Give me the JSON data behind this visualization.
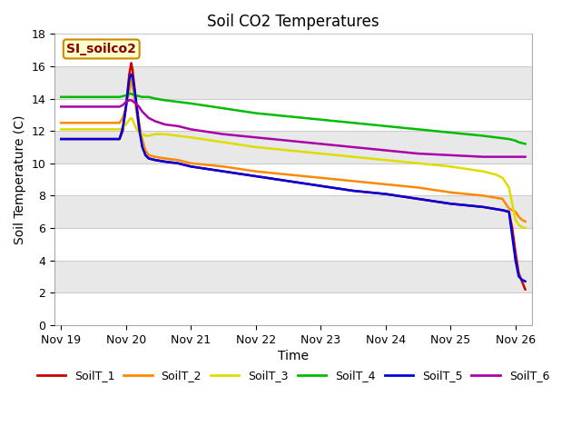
{
  "title": "Soil CO2 Temperatures",
  "xlabel": "Time",
  "ylabel": "Soil Temperature (C)",
  "ylim": [
    0,
    18
  ],
  "annotation_text": "SI_soilco2",
  "background_color": "#ffffff",
  "fig_background": "#ffffff",
  "stripe_colors": [
    "#ffffff",
    "#e8e8e8"
  ],
  "series": {
    "SoilT_1": {
      "color": "#cc0000",
      "points": [
        [
          0.0,
          11.5
        ],
        [
          0.25,
          11.5
        ],
        [
          0.5,
          11.5
        ],
        [
          0.75,
          11.5
        ],
        [
          0.9,
          11.5
        ],
        [
          0.95,
          12.0
        ],
        [
          1.0,
          13.5
        ],
        [
          1.05,
          15.5
        ],
        [
          1.08,
          16.2
        ],
        [
          1.1,
          15.8
        ],
        [
          1.15,
          14.0
        ],
        [
          1.2,
          12.5
        ],
        [
          1.25,
          11.2
        ],
        [
          1.3,
          10.5
        ],
        [
          1.35,
          10.3
        ],
        [
          1.45,
          10.2
        ],
        [
          1.6,
          10.1
        ],
        [
          1.8,
          10.0
        ],
        [
          2.0,
          9.8
        ],
        [
          2.5,
          9.5
        ],
        [
          3.0,
          9.2
        ],
        [
          3.5,
          8.9
        ],
        [
          4.0,
          8.6
        ],
        [
          4.5,
          8.3
        ],
        [
          5.0,
          8.1
        ],
        [
          5.5,
          7.8
        ],
        [
          6.0,
          7.5
        ],
        [
          6.5,
          7.3
        ],
        [
          6.8,
          7.1
        ],
        [
          6.85,
          7.05
        ],
        [
          6.9,
          7.0
        ],
        [
          6.95,
          6.0
        ],
        [
          7.0,
          4.5
        ],
        [
          7.05,
          3.2
        ],
        [
          7.1,
          2.7
        ],
        [
          7.15,
          2.2
        ]
      ]
    },
    "SoilT_2": {
      "color": "#ff8800",
      "points": [
        [
          0.0,
          12.5
        ],
        [
          0.25,
          12.5
        ],
        [
          0.5,
          12.5
        ],
        [
          0.75,
          12.5
        ],
        [
          0.9,
          12.5
        ],
        [
          0.95,
          12.8
        ],
        [
          1.0,
          13.5
        ],
        [
          1.05,
          14.5
        ],
        [
          1.08,
          15.2
        ],
        [
          1.1,
          14.8
        ],
        [
          1.15,
          13.5
        ],
        [
          1.2,
          12.2
        ],
        [
          1.25,
          11.5
        ],
        [
          1.3,
          10.8
        ],
        [
          1.35,
          10.5
        ],
        [
          1.45,
          10.4
        ],
        [
          1.6,
          10.3
        ],
        [
          1.8,
          10.2
        ],
        [
          2.0,
          10.0
        ],
        [
          2.5,
          9.8
        ],
        [
          3.0,
          9.5
        ],
        [
          3.5,
          9.3
        ],
        [
          4.0,
          9.1
        ],
        [
          4.5,
          8.9
        ],
        [
          5.0,
          8.7
        ],
        [
          5.5,
          8.5
        ],
        [
          6.0,
          8.2
        ],
        [
          6.5,
          8.0
        ],
        [
          6.8,
          7.8
        ],
        [
          6.85,
          7.5
        ],
        [
          6.9,
          7.2
        ],
        [
          6.95,
          7.1
        ],
        [
          7.0,
          7.0
        ],
        [
          7.05,
          6.7
        ],
        [
          7.1,
          6.5
        ],
        [
          7.15,
          6.4
        ]
      ]
    },
    "SoilT_3": {
      "color": "#dddd00",
      "points": [
        [
          0.0,
          12.1
        ],
        [
          0.25,
          12.1
        ],
        [
          0.5,
          12.1
        ],
        [
          0.75,
          12.1
        ],
        [
          0.9,
          12.1
        ],
        [
          0.95,
          12.2
        ],
        [
          1.0,
          12.4
        ],
        [
          1.05,
          12.7
        ],
        [
          1.08,
          12.8
        ],
        [
          1.1,
          12.7
        ],
        [
          1.15,
          12.2
        ],
        [
          1.2,
          11.9
        ],
        [
          1.25,
          11.8
        ],
        [
          1.3,
          11.7
        ],
        [
          1.35,
          11.7
        ],
        [
          1.45,
          11.8
        ],
        [
          1.6,
          11.8
        ],
        [
          1.8,
          11.7
        ],
        [
          2.0,
          11.6
        ],
        [
          2.5,
          11.3
        ],
        [
          3.0,
          11.0
        ],
        [
          3.5,
          10.8
        ],
        [
          4.0,
          10.6
        ],
        [
          4.5,
          10.4
        ],
        [
          5.0,
          10.2
        ],
        [
          5.5,
          10.0
        ],
        [
          6.0,
          9.8
        ],
        [
          6.5,
          9.5
        ],
        [
          6.7,
          9.3
        ],
        [
          6.8,
          9.1
        ],
        [
          6.85,
          8.8
        ],
        [
          6.9,
          8.5
        ],
        [
          6.95,
          7.5
        ],
        [
          7.0,
          6.5
        ],
        [
          7.05,
          6.2
        ],
        [
          7.1,
          6.05
        ],
        [
          7.15,
          6.0
        ]
      ]
    },
    "SoilT_4": {
      "color": "#00bb00",
      "points": [
        [
          0.0,
          14.1
        ],
        [
          0.25,
          14.1
        ],
        [
          0.5,
          14.1
        ],
        [
          0.75,
          14.1
        ],
        [
          0.9,
          14.1
        ],
        [
          0.95,
          14.15
        ],
        [
          1.0,
          14.2
        ],
        [
          1.05,
          14.3
        ],
        [
          1.08,
          14.3
        ],
        [
          1.1,
          14.25
        ],
        [
          1.15,
          14.2
        ],
        [
          1.2,
          14.15
        ],
        [
          1.25,
          14.1
        ],
        [
          1.3,
          14.1
        ],
        [
          1.35,
          14.1
        ],
        [
          1.45,
          14.0
        ],
        [
          1.6,
          13.9
        ],
        [
          1.8,
          13.8
        ],
        [
          2.0,
          13.7
        ],
        [
          2.5,
          13.4
        ],
        [
          3.0,
          13.1
        ],
        [
          3.5,
          12.9
        ],
        [
          4.0,
          12.7
        ],
        [
          4.5,
          12.5
        ],
        [
          5.0,
          12.3
        ],
        [
          5.5,
          12.1
        ],
        [
          6.0,
          11.9
        ],
        [
          6.5,
          11.7
        ],
        [
          6.8,
          11.55
        ],
        [
          6.9,
          11.5
        ],
        [
          7.0,
          11.4
        ],
        [
          7.05,
          11.3
        ],
        [
          7.1,
          11.25
        ],
        [
          7.15,
          11.2
        ]
      ]
    },
    "SoilT_5": {
      "color": "#0000dd",
      "points": [
        [
          0.0,
          11.5
        ],
        [
          0.25,
          11.5
        ],
        [
          0.5,
          11.5
        ],
        [
          0.75,
          11.5
        ],
        [
          0.9,
          11.5
        ],
        [
          0.95,
          12.2
        ],
        [
          1.0,
          13.5
        ],
        [
          1.05,
          15.2
        ],
        [
          1.08,
          15.5
        ],
        [
          1.1,
          15.4
        ],
        [
          1.15,
          14.0
        ],
        [
          1.2,
          12.2
        ],
        [
          1.25,
          11.0
        ],
        [
          1.3,
          10.5
        ],
        [
          1.35,
          10.3
        ],
        [
          1.45,
          10.2
        ],
        [
          1.6,
          10.1
        ],
        [
          1.8,
          10.0
        ],
        [
          2.0,
          9.8
        ],
        [
          2.5,
          9.5
        ],
        [
          3.0,
          9.2
        ],
        [
          3.5,
          8.9
        ],
        [
          4.0,
          8.6
        ],
        [
          4.5,
          8.3
        ],
        [
          5.0,
          8.1
        ],
        [
          5.5,
          7.8
        ],
        [
          6.0,
          7.5
        ],
        [
          6.5,
          7.3
        ],
        [
          6.8,
          7.1
        ],
        [
          6.85,
          7.05
        ],
        [
          6.9,
          7.0
        ],
        [
          6.95,
          5.5
        ],
        [
          7.0,
          4.0
        ],
        [
          7.05,
          3.0
        ],
        [
          7.1,
          2.8
        ],
        [
          7.15,
          2.7
        ]
      ]
    },
    "SoilT_6": {
      "color": "#aa00aa",
      "points": [
        [
          0.0,
          13.5
        ],
        [
          0.25,
          13.5
        ],
        [
          0.5,
          13.5
        ],
        [
          0.75,
          13.5
        ],
        [
          0.9,
          13.5
        ],
        [
          0.95,
          13.6
        ],
        [
          1.0,
          13.8
        ],
        [
          1.05,
          13.9
        ],
        [
          1.08,
          13.9
        ],
        [
          1.1,
          13.85
        ],
        [
          1.15,
          13.7
        ],
        [
          1.2,
          13.5
        ],
        [
          1.25,
          13.2
        ],
        [
          1.3,
          13.0
        ],
        [
          1.35,
          12.8
        ],
        [
          1.45,
          12.6
        ],
        [
          1.6,
          12.4
        ],
        [
          1.8,
          12.3
        ],
        [
          2.0,
          12.1
        ],
        [
          2.5,
          11.8
        ],
        [
          3.0,
          11.6
        ],
        [
          3.5,
          11.4
        ],
        [
          4.0,
          11.2
        ],
        [
          4.5,
          11.0
        ],
        [
          5.0,
          10.8
        ],
        [
          5.5,
          10.6
        ],
        [
          6.0,
          10.5
        ],
        [
          6.5,
          10.4
        ],
        [
          6.8,
          10.4
        ],
        [
          6.9,
          10.4
        ],
        [
          7.0,
          10.4
        ],
        [
          7.05,
          10.4
        ],
        [
          7.1,
          10.4
        ],
        [
          7.15,
          10.4
        ]
      ]
    }
  },
  "xtick_labels": [
    "Nov 19",
    "Nov 20",
    "Nov 21",
    "Nov 22",
    "Nov 23",
    "Nov 24",
    "Nov 25",
    "Nov 26"
  ],
  "xtick_positions": [
    0,
    1,
    2,
    3,
    4,
    5,
    6,
    7
  ],
  "ytick_positions": [
    0,
    2,
    4,
    6,
    8,
    10,
    12,
    14,
    16,
    18
  ],
  "legend_order": [
    "SoilT_1",
    "SoilT_2",
    "SoilT_3",
    "SoilT_4",
    "SoilT_5",
    "SoilT_6"
  ]
}
